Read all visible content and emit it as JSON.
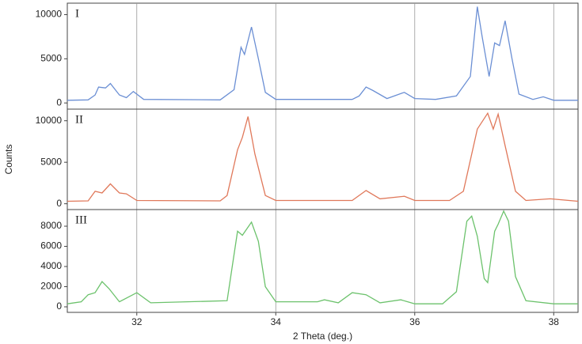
{
  "chart_data": [
    {
      "type": "line",
      "label": "I",
      "color": "#6b8fd4",
      "ylim": [
        -700,
        11300
      ],
      "yticks": [
        0,
        5000,
        10000
      ],
      "x": [
        31.0,
        31.3,
        31.4,
        31.45,
        31.55,
        31.62,
        31.75,
        31.85,
        31.95,
        32.1,
        33.2,
        33.4,
        33.5,
        33.55,
        33.65,
        33.75,
        33.85,
        34.0,
        35.1,
        35.2,
        35.3,
        35.4,
        35.6,
        35.85,
        36.0,
        36.3,
        36.6,
        36.8,
        36.9,
        36.97,
        37.07,
        37.15,
        37.22,
        37.3,
        37.4,
        37.5,
        37.7,
        37.85,
        38.0,
        38.35
      ],
      "values": [
        300,
        350,
        900,
        1800,
        1700,
        2200,
        900,
        600,
        1300,
        400,
        350,
        1500,
        6300,
        5500,
        8600,
        5000,
        1200,
        400,
        400,
        800,
        1800,
        1400,
        500,
        1200,
        500,
        400,
        800,
        3000,
        10900,
        7500,
        3000,
        6800,
        6500,
        9300,
        5000,
        1000,
        400,
        700,
        300,
        300
      ]
    },
    {
      "type": "line",
      "label": "II",
      "color": "#e0785a",
      "y_label": "Counts",
      "ylim": [
        -700,
        11400
      ],
      "yticks": [
        0,
        5000,
        10000
      ],
      "x": [
        31.0,
        31.3,
        31.4,
        31.5,
        31.62,
        31.75,
        31.85,
        32.0,
        33.2,
        33.3,
        33.45,
        33.52,
        33.6,
        33.7,
        33.85,
        34.0,
        35.1,
        35.3,
        35.5,
        35.85,
        36.0,
        36.5,
        36.7,
        36.9,
        37.05,
        37.13,
        37.2,
        37.3,
        37.45,
        37.6,
        37.95,
        38.35
      ],
      "values": [
        300,
        350,
        1500,
        1300,
        2400,
        1300,
        1200,
        400,
        350,
        1000,
        6500,
        8000,
        10500,
        6000,
        1000,
        400,
        400,
        1600,
        600,
        900,
        400,
        400,
        1500,
        9000,
        10900,
        9000,
        10800,
        7000,
        1500,
        400,
        600,
        300
      ]
    },
    {
      "type": "line",
      "label": "III",
      "color": "#6cc26c",
      "x_label": "2 Theta (deg.)",
      "ylim": [
        -550,
        9650
      ],
      "yticks": [
        0,
        2000,
        4000,
        6000,
        8000
      ],
      "xlim": [
        31.0,
        38.35
      ],
      "xticks": [
        32,
        34,
        36,
        38
      ],
      "x": [
        31.0,
        31.2,
        31.3,
        31.4,
        31.5,
        31.6,
        31.75,
        32.0,
        32.2,
        33.3,
        33.45,
        33.52,
        33.65,
        33.75,
        33.85,
        34.0,
        34.6,
        34.7,
        34.9,
        35.1,
        35.3,
        35.5,
        35.8,
        36.0,
        36.4,
        36.6,
        36.75,
        36.82,
        36.9,
        37.0,
        37.05,
        37.15,
        37.2,
        37.28,
        37.35,
        37.45,
        37.6,
        38.0,
        38.35
      ],
      "values": [
        300,
        500,
        1200,
        1400,
        2500,
        1800,
        500,
        1400,
        400,
        600,
        7500,
        7100,
        8400,
        6500,
        2000,
        500,
        500,
        700,
        400,
        1400,
        1200,
        400,
        700,
        300,
        300,
        1500,
        8500,
        9000,
        7000,
        2800,
        2400,
        7500,
        8200,
        9500,
        8500,
        3000,
        600,
        300,
        300
      ]
    }
  ]
}
